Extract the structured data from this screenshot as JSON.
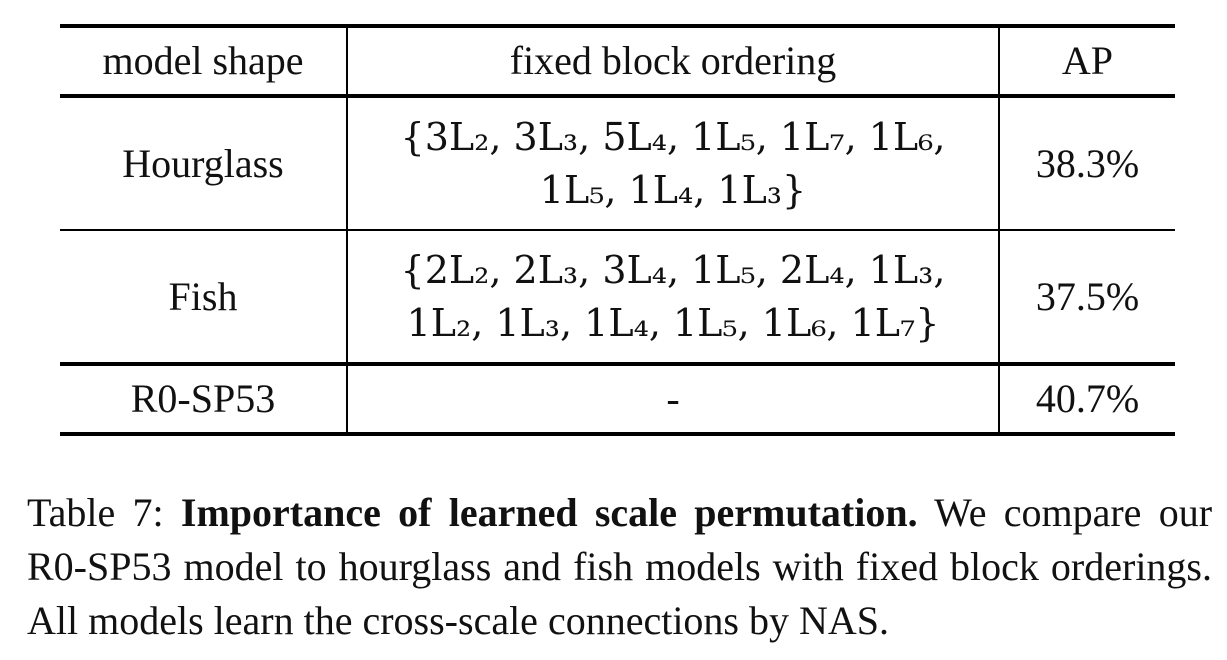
{
  "table": {
    "headers": [
      "model shape",
      "fixed block ordering",
      "AP"
    ],
    "rows": [
      {
        "shape": "Hourglass",
        "ordering_line1": "{3L₂, 3L₃, 5L₄, 1L₅, 1L₇, 1L₆,",
        "ordering_line2": "1L₅, 1L₄, 1L₃}",
        "ap": "38.3%"
      },
      {
        "shape": "Fish",
        "ordering_line1": "{2L₂, 2L₃, 3L₄, 1L₅, 2L₄, 1L₃,",
        "ordering_line2": "1L₂, 1L₃, 1L₄, 1L₅, 1L₆, 1L₇}",
        "ap": "37.5%"
      },
      {
        "shape": "R0-SP53",
        "ordering": "-",
        "ap": "40.7%"
      }
    ]
  },
  "caption": {
    "label": "Table 7:",
    "title": "Importance of learned scale permutation.",
    "text": "We compare our R0-SP53 model to hourglass and fish models with fixed block orderings. All models learn the cross-scale connections by NAS."
  }
}
